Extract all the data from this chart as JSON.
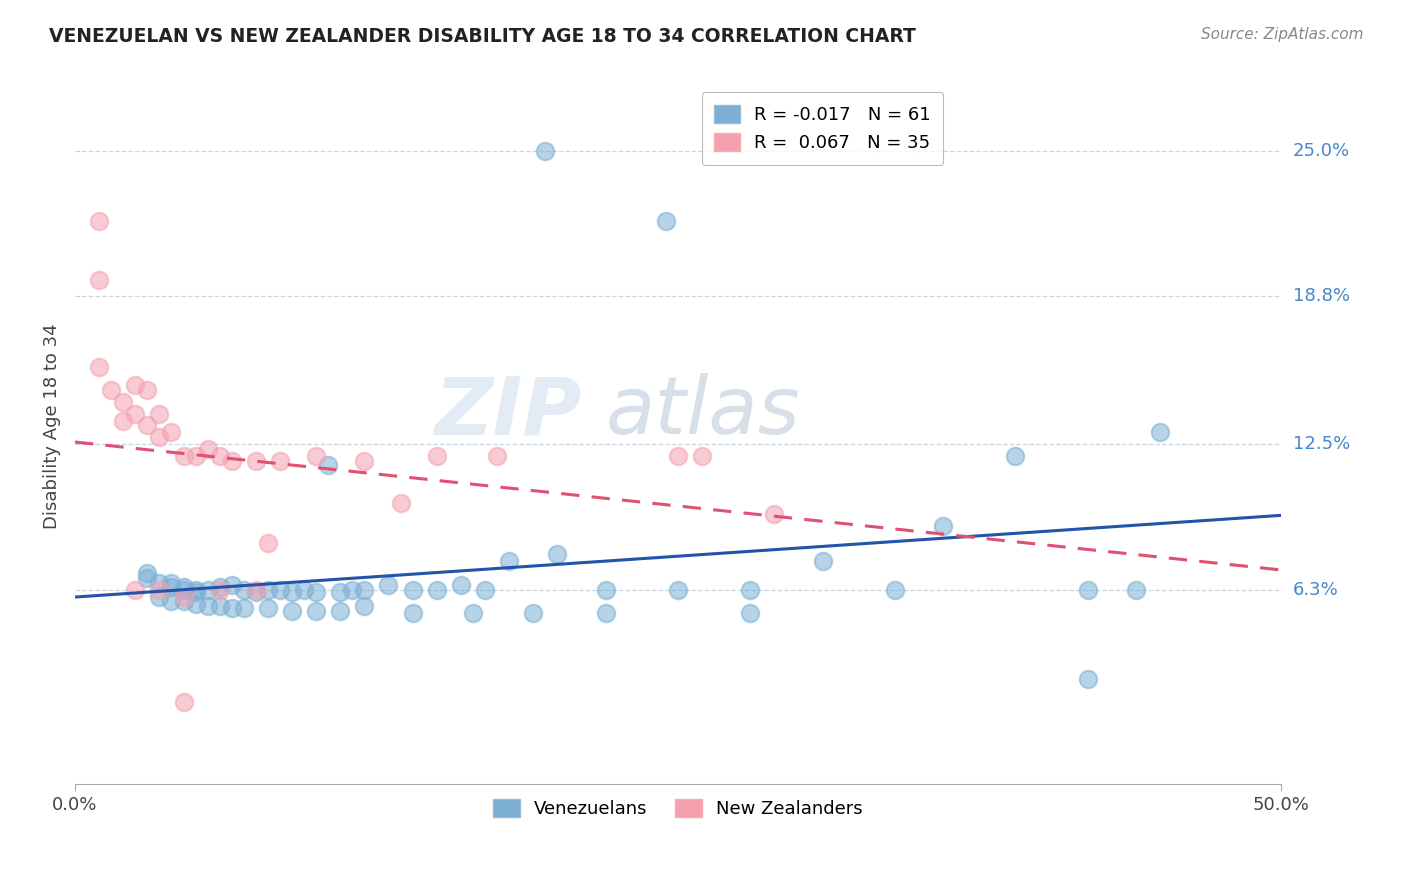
{
  "title": "VENEZUELAN VS NEW ZEALANDER DISABILITY AGE 18 TO 34 CORRELATION CHART",
  "source": "Source: ZipAtlas.com",
  "ylabel": "Disability Age 18 to 34",
  "yticks": [
    0.063,
    0.125,
    0.188,
    0.25
  ],
  "ytick_labels": [
    "6.3%",
    "12.5%",
    "18.8%",
    "25.0%"
  ],
  "xlim": [
    0.0,
    0.5
  ],
  "ylim": [
    -0.02,
    0.285
  ],
  "legend_r_blue": "-0.017",
  "legend_n_blue": "61",
  "legend_r_pink": "0.067",
  "legend_n_pink": "35",
  "blue_color": "#7BAFD4",
  "pink_color": "#F4A0B0",
  "blue_line_color": "#2255AA",
  "pink_line_color": "#E05070",
  "watermark_zip": "ZIP",
  "watermark_atlas": "atlas",
  "venezuelan_x": [
    0.195,
    0.245,
    0.03,
    0.03,
    0.035,
    0.04,
    0.04,
    0.045,
    0.045,
    0.05,
    0.05,
    0.055,
    0.06,
    0.065,
    0.07,
    0.075,
    0.08,
    0.085,
    0.09,
    0.095,
    0.1,
    0.105,
    0.11,
    0.115,
    0.12,
    0.13,
    0.14,
    0.15,
    0.16,
    0.17,
    0.18,
    0.2,
    0.22,
    0.25,
    0.28,
    0.31,
    0.34,
    0.36,
    0.39,
    0.42,
    0.45,
    0.035,
    0.04,
    0.045,
    0.05,
    0.055,
    0.06,
    0.065,
    0.07,
    0.08,
    0.09,
    0.1,
    0.11,
    0.12,
    0.14,
    0.165,
    0.19,
    0.22,
    0.28,
    0.42,
    0.44
  ],
  "venezuelan_y": [
    0.25,
    0.22,
    0.07,
    0.068,
    0.066,
    0.066,
    0.064,
    0.064,
    0.063,
    0.063,
    0.062,
    0.063,
    0.064,
    0.065,
    0.063,
    0.062,
    0.063,
    0.063,
    0.062,
    0.063,
    0.062,
    0.116,
    0.062,
    0.063,
    0.063,
    0.065,
    0.063,
    0.063,
    0.065,
    0.063,
    0.075,
    0.078,
    0.063,
    0.063,
    0.063,
    0.075,
    0.063,
    0.09,
    0.12,
    0.063,
    0.13,
    0.06,
    0.058,
    0.058,
    0.057,
    0.056,
    0.056,
    0.055,
    0.055,
    0.055,
    0.054,
    0.054,
    0.054,
    0.056,
    0.053,
    0.053,
    0.053,
    0.053,
    0.053,
    0.025,
    0.063
  ],
  "nz_x": [
    0.01,
    0.01,
    0.015,
    0.02,
    0.02,
    0.025,
    0.025,
    0.03,
    0.03,
    0.035,
    0.035,
    0.04,
    0.045,
    0.05,
    0.055,
    0.06,
    0.065,
    0.075,
    0.085,
    0.1,
    0.12,
    0.135,
    0.15,
    0.175,
    0.25,
    0.26,
    0.29,
    0.08,
    0.045,
    0.06,
    0.075,
    0.025,
    0.035,
    0.045,
    0.01
  ],
  "nz_y": [
    0.195,
    0.158,
    0.148,
    0.143,
    0.135,
    0.15,
    0.138,
    0.148,
    0.133,
    0.138,
    0.128,
    0.13,
    0.12,
    0.12,
    0.123,
    0.12,
    0.118,
    0.118,
    0.118,
    0.12,
    0.118,
    0.1,
    0.12,
    0.12,
    0.12,
    0.12,
    0.095,
    0.083,
    0.06,
    0.063,
    0.063,
    0.063,
    0.063,
    0.015,
    0.22
  ]
}
